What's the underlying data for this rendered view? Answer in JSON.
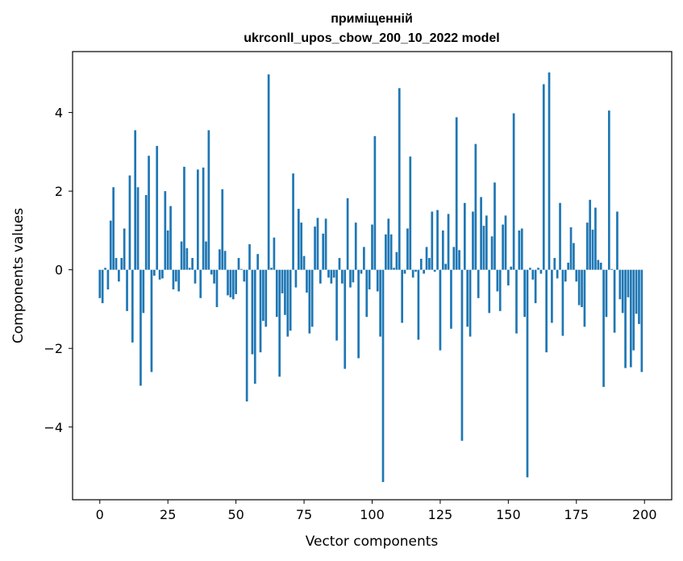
{
  "chart_data": {
    "type": "bar",
    "title_lines": [
      "приміщенній",
      "ukrconll_upos_cbow_200_10_2022 model"
    ],
    "xlabel": "Vector components",
    "ylabel": "Components values",
    "xlim": [
      -10,
      210
    ],
    "ylim": [
      -5.85,
      5.55
    ],
    "xticks": [
      0,
      25,
      50,
      75,
      100,
      125,
      150,
      175,
      200
    ],
    "yticks": [
      -4,
      -2,
      0,
      2,
      4
    ],
    "ytick_labels": [
      "−4",
      "−2",
      "0",
      "2",
      "4"
    ],
    "grid": false,
    "bar_color": "#1f77b4",
    "values": [
      -0.72,
      -0.85,
      0.05,
      -0.5,
      1.25,
      2.1,
      0.3,
      -0.3,
      0.3,
      1.05,
      -1.05,
      2.4,
      -1.85,
      3.55,
      2.1,
      -2.95,
      -1.1,
      1.9,
      2.9,
      -2.6,
      -0.15,
      3.15,
      -0.25,
      -0.22,
      2.0,
      1.0,
      1.62,
      -0.5,
      -0.3,
      -0.55,
      0.72,
      2.62,
      0.55,
      0.05,
      0.3,
      -0.35,
      2.55,
      -0.72,
      2.6,
      0.72,
      3.55,
      -0.12,
      -0.35,
      -0.95,
      0.52,
      2.05,
      0.48,
      -0.65,
      -0.7,
      -0.75,
      -0.62,
      0.3,
      0.02,
      -0.3,
      -3.35,
      0.65,
      -2.15,
      -2.9,
      0.4,
      -2.1,
      -1.3,
      -1.45,
      4.97,
      0.05,
      0.82,
      -1.2,
      -2.72,
      -0.6,
      -1.15,
      -1.7,
      -1.55,
      2.45,
      -0.45,
      1.55,
      1.2,
      0.35,
      -0.58,
      -1.62,
      -1.45,
      1.1,
      1.32,
      -0.35,
      0.92,
      1.3,
      -0.2,
      -0.35,
      -0.2,
      -1.8,
      0.3,
      -0.35,
      -2.52,
      1.82,
      -0.45,
      -0.32,
      1.2,
      -2.25,
      -0.1,
      0.58,
      -1.2,
      -0.5,
      1.15,
      3.4,
      -0.55,
      -1.7,
      -5.4,
      0.9,
      1.3,
      0.9,
      0.05,
      0.45,
      4.62,
      -1.35,
      -0.1,
      1.05,
      2.88,
      -0.2,
      -0.05,
      -1.78,
      0.28,
      -0.1,
      0.58,
      0.3,
      1.48,
      -0.05,
      1.52,
      -2.05,
      1.0,
      0.15,
      1.42,
      -1.5,
      0.58,
      3.88,
      0.5,
      -4.35,
      1.7,
      -1.45,
      -1.7,
      1.48,
      3.2,
      -0.72,
      1.85,
      1.12,
      1.38,
      -1.1,
      0.85,
      2.22,
      -0.55,
      -1.05,
      1.15,
      1.38,
      -0.4,
      0.08,
      3.98,
      -1.62,
      1.0,
      1.05,
      -1.2,
      -5.28,
      0.05,
      -0.25,
      -0.85,
      0.05,
      -0.1,
      4.72,
      -2.1,
      5.02,
      -1.35,
      0.3,
      -0.22,
      1.7,
      -1.68,
      -0.3,
      0.18,
      1.08,
      0.68,
      -0.3,
      -0.9,
      -0.95,
      -1.45,
      1.2,
      1.78,
      1.02,
      1.58,
      0.25,
      0.18,
      -2.98,
      -1.2,
      4.05,
      0.02,
      -1.6,
      1.48,
      -0.75,
      -1.1,
      -2.5,
      -0.7,
      -2.48,
      -2.05,
      -1.12,
      -1.38,
      -2.6
    ]
  }
}
